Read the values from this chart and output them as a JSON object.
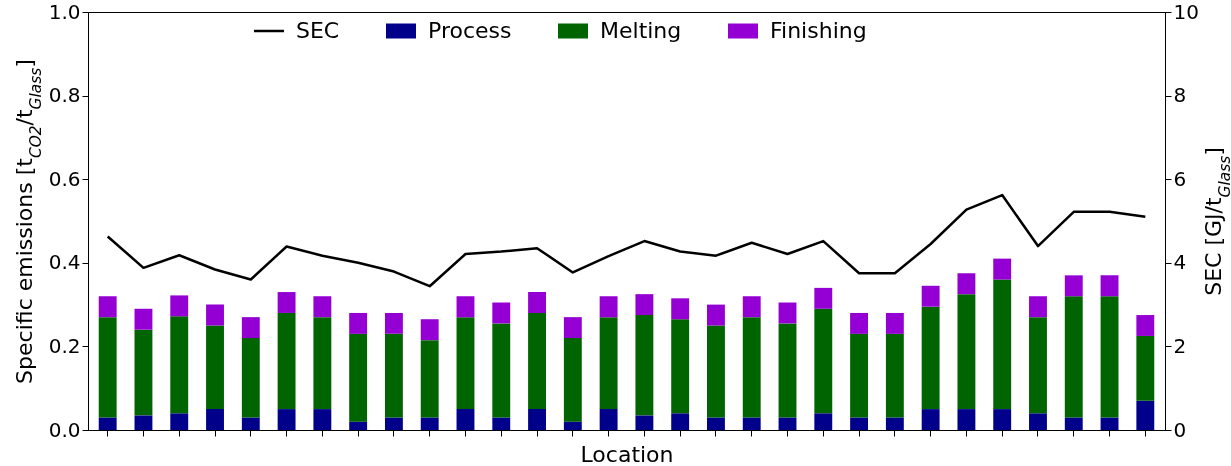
{
  "chart_data": {
    "type": "bar",
    "stacked": true,
    "xlabel": "Location",
    "ylabel": "Specific emissions [t$_{CO2}$/t$_{Glass}$]",
    "y2label": "SEC [GJ/t$_{Glass}$]",
    "categories": [
      null,
      null,
      null,
      null,
      null,
      null,
      null,
      null,
      null,
      null,
      null,
      null,
      null,
      null,
      null,
      null,
      null,
      null,
      null,
      null,
      null,
      null,
      null,
      null,
      null,
      null,
      null,
      null,
      null,
      null
    ],
    "series": [
      {
        "name": "SEC",
        "type": "line",
        "axis": "y2",
        "color": "#000000",
        "values": [
          4.63,
          3.88,
          4.18,
          3.84,
          3.6,
          4.39,
          4.17,
          4.0,
          3.79,
          3.44,
          4.21,
          4.27,
          4.35,
          3.77,
          4.16,
          4.52,
          4.27,
          4.17,
          4.48,
          4.21,
          4.52,
          3.75,
          3.75,
          4.45,
          5.27,
          5.62,
          4.4,
          5.22,
          5.22,
          5.1
        ]
      },
      {
        "name": "Process",
        "color": "#00008b",
        "values": [
          0.03,
          0.035,
          0.04,
          0.05,
          0.03,
          0.05,
          0.05,
          0.02,
          0.03,
          0.03,
          0.05,
          0.03,
          0.05,
          0.02,
          0.05,
          0.035,
          0.04,
          0.03,
          0.03,
          0.03,
          0.04,
          0.03,
          0.03,
          0.05,
          0.05,
          0.05,
          0.04,
          0.03,
          0.03,
          0.07
        ]
      },
      {
        "name": "Melting",
        "color": "#006400",
        "values": [
          0.24,
          0.205,
          0.232,
          0.2,
          0.19,
          0.23,
          0.22,
          0.21,
          0.2,
          0.185,
          0.22,
          0.225,
          0.23,
          0.2,
          0.22,
          0.24,
          0.225,
          0.22,
          0.24,
          0.225,
          0.25,
          0.2,
          0.2,
          0.245,
          0.275,
          0.31,
          0.23,
          0.29,
          0.29,
          0.155
        ]
      },
      {
        "name": "Finishing",
        "color": "#9400d3",
        "values": [
          0.05,
          0.05,
          0.05,
          0.05,
          0.05,
          0.05,
          0.05,
          0.05,
          0.05,
          0.05,
          0.05,
          0.05,
          0.05,
          0.05,
          0.05,
          0.05,
          0.05,
          0.05,
          0.05,
          0.05,
          0.05,
          0.05,
          0.05,
          0.05,
          0.05,
          0.05,
          0.05,
          0.05,
          0.05,
          0.05
        ]
      }
    ],
    "ylim": [
      0,
      1
    ],
    "yticks": [
      {
        "value": 0,
        "label": "0.0"
      },
      0.2,
      0.4,
      0.6,
      0.8,
      {
        "value": 1,
        "label": "1.0"
      }
    ],
    "y2lim": [
      0,
      10
    ],
    "y2ticks": [
      0,
      2,
      4,
      6,
      8,
      10
    ],
    "tick_labels": "y",
    "grid": false,
    "legend": "top",
    "line_style": "solid",
    "marker": "none"
  }
}
